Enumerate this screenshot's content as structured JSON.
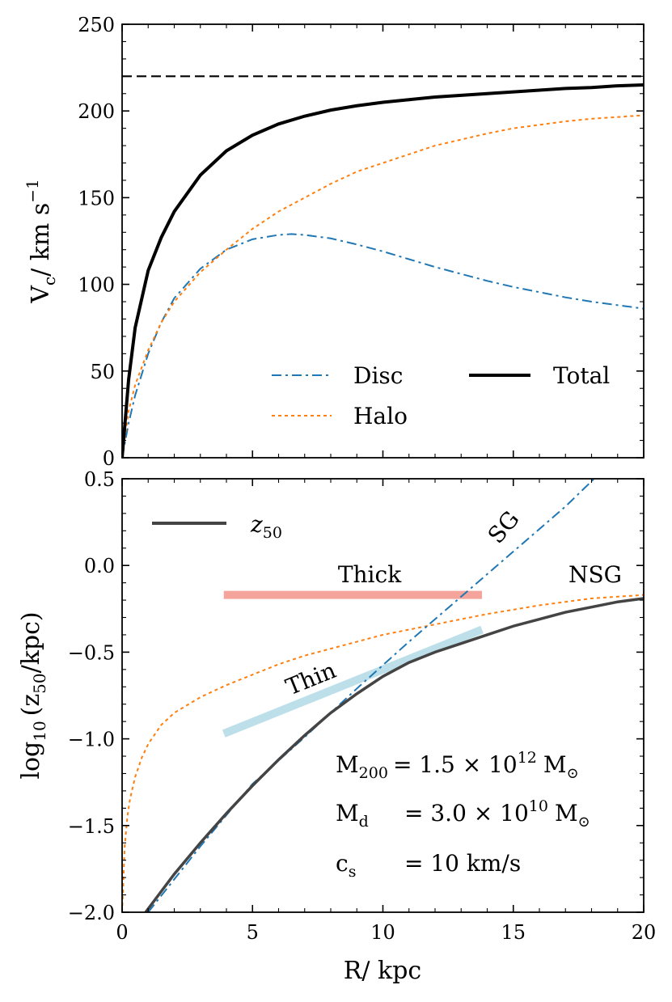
{
  "colors": {
    "disc": "#1f77b4",
    "halo": "#ff7f0e",
    "total": "#000000",
    "z50": "#444444",
    "thick": "#f4a49b",
    "thin": "#bcdfea",
    "axis": "#000000"
  },
  "chart_data": [
    {
      "id": "top",
      "type": "line",
      "xlim": [
        0,
        20
      ],
      "ylim": [
        0,
        250
      ],
      "xlabel": "",
      "ylabel": "V_c / km s^-1",
      "ylabel_main": "V",
      "ylabel_sub": "c",
      "ylabel_rest": "/ km s",
      "ylabel_sup": "−1",
      "yticks": [
        "0",
        "50",
        "100",
        "150",
        "200",
        "250"
      ],
      "ytick_values": [
        0,
        50,
        100,
        150,
        200,
        250
      ],
      "reference_line": {
        "y": 220,
        "style": "dashed"
      },
      "series": [
        {
          "name": "Disc",
          "style": "dashdot",
          "x": [
            0,
            0.25,
            0.5,
            1,
            1.5,
            2,
            3,
            4,
            5,
            6,
            6.5,
            7,
            8,
            9,
            10,
            11,
            12,
            13,
            14,
            15,
            16,
            17,
            18,
            19,
            20
          ],
          "y": [
            0,
            20,
            36,
            60,
            78,
            92,
            109,
            120,
            126,
            128.5,
            129,
            128.5,
            126.5,
            123,
            119,
            114.5,
            110,
            106,
            102,
            98.5,
            95.5,
            92.5,
            90,
            88,
            86
          ]
        },
        {
          "name": "Halo",
          "style": "dotted",
          "x": [
            0,
            0.25,
            0.5,
            1,
            1.5,
            2,
            3,
            4,
            5,
            6,
            7,
            8,
            9,
            10,
            11,
            12,
            13,
            14,
            15,
            16,
            17,
            18,
            19,
            20
          ],
          "y": [
            0,
            27,
            42,
            62,
            78,
            90,
            107,
            120,
            132,
            142,
            150,
            158,
            165,
            170,
            175,
            180,
            183.5,
            187,
            190,
            192,
            194,
            195.5,
            196.5,
            197.5
          ]
        },
        {
          "name": "Total",
          "style": "solid-thick",
          "x": [
            0,
            0.25,
            0.5,
            1,
            1.5,
            2,
            3,
            4,
            5,
            6,
            7,
            8,
            9,
            10,
            11,
            12,
            13,
            14,
            15,
            16,
            17,
            18,
            19,
            20
          ],
          "y": [
            0,
            45,
            75,
            108,
            127,
            142,
            163,
            177,
            186,
            192.5,
            197,
            200.5,
            203,
            205,
            206.5,
            208,
            209,
            210,
            211,
            212,
            213,
            213.5,
            214.5,
            215
          ]
        }
      ],
      "legend": [
        "Disc",
        "Halo",
        "Total"
      ],
      "legend_position": "lower-right"
    },
    {
      "id": "bottom",
      "type": "line",
      "xlim": [
        0,
        20
      ],
      "ylim": [
        -2.0,
        0.5
      ],
      "xlabel": "R/ kpc",
      "ylabel": "log10 (z50/kpc)",
      "xticks": [
        "0",
        "5",
        "10",
        "15",
        "20"
      ],
      "xtick_values": [
        0,
        5,
        10,
        15,
        20
      ],
      "yticks": [
        "−2.0",
        "−1.5",
        "−1.0",
        "−0.5",
        "0.0",
        "0.5"
      ],
      "ytick_values": [
        -2.0,
        -1.5,
        -1.0,
        -0.5,
        0.0,
        0.5
      ],
      "series": [
        {
          "name": "z50",
          "style": "solid",
          "x": [
            0.9,
            2,
            3,
            4,
            5,
            6,
            7,
            8,
            9,
            10,
            11,
            12,
            13,
            14,
            15,
            16,
            17,
            18,
            19,
            20
          ],
          "y": [
            -2.0,
            -1.78,
            -1.6,
            -1.43,
            -1.27,
            -1.12,
            -0.98,
            -0.85,
            -0.74,
            -0.64,
            -0.56,
            -0.5,
            -0.45,
            -0.4,
            -0.35,
            -0.31,
            -0.27,
            -0.24,
            -0.21,
            -0.19
          ]
        },
        {
          "name": "SG",
          "style": "dashdot",
          "x": [
            1,
            3,
            5,
            7,
            9,
            11,
            13,
            15,
            17,
            18.1
          ],
          "y": [
            -2.0,
            -1.62,
            -1.26,
            -0.99,
            -0.71,
            -0.44,
            -0.18,
            0.08,
            0.34,
            0.5
          ]
        },
        {
          "name": "NSG",
          "style": "dotted",
          "x": [
            0,
            0.1,
            0.2,
            0.3,
            0.5,
            0.75,
            1,
            1.5,
            2,
            3,
            4,
            5,
            6,
            7,
            8,
            9,
            10,
            12,
            14,
            16,
            18,
            20
          ],
          "y": [
            -2.0,
            -1.62,
            -1.45,
            -1.35,
            -1.22,
            -1.11,
            -1.03,
            -0.92,
            -0.85,
            -0.76,
            -0.69,
            -0.63,
            -0.57,
            -0.52,
            -0.48,
            -0.44,
            -0.4,
            -0.34,
            -0.28,
            -0.23,
            -0.19,
            -0.17
          ]
        },
        {
          "name": "Thick",
          "style": "band",
          "x": [
            3.9,
            13.8
          ],
          "y": [
            -0.17,
            -0.17
          ]
        },
        {
          "name": "Thin",
          "style": "band",
          "x": [
            3.9,
            13.8
          ],
          "y": [
            -0.97,
            -0.37
          ]
        }
      ],
      "legend": [
        "z50"
      ],
      "legend_label_main": "z",
      "legend_label_sub": "50",
      "legend_position": "upper-left",
      "annotations": {
        "thick": "Thick",
        "thin": "Thin",
        "sg": "SG",
        "nsg": "NSG"
      },
      "params": [
        {
          "name": "M",
          "sub": "200",
          "pad": "",
          "eq": "= 1.5 × 10",
          "exp": "12",
          "unit": "M",
          "unit_sym": "⊙"
        },
        {
          "name": "M",
          "sub": "d",
          "pad": "",
          "eq": "= 3.0 × 10",
          "exp": "10",
          "unit": "M",
          "unit_sym": "⊙"
        },
        {
          "name": "c",
          "sub": "s",
          "pad": "",
          "eq": "= 10 km/s",
          "exp": "",
          "unit": "",
          "unit_sym": ""
        }
      ],
      "ylabel_parts": {
        "pre": "log",
        "pre_sub": "10",
        "mid": "(z",
        "mid_sub": "50",
        "post": "/kpc)"
      },
      "xlabel_text": "R/ kpc"
    }
  ]
}
